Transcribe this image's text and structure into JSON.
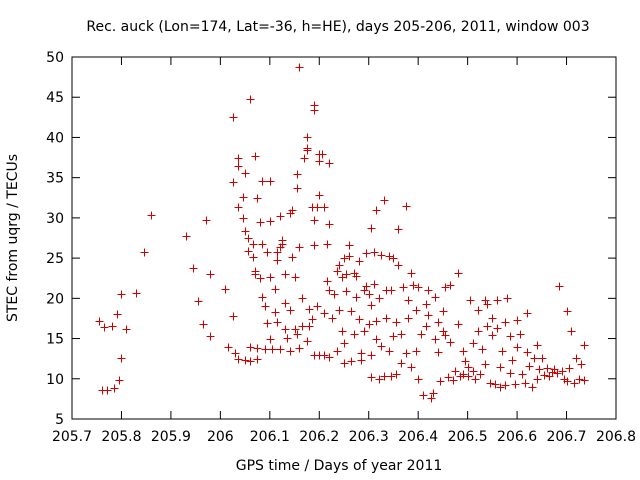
{
  "chart_data": {
    "type": "scatter",
    "title": "Rec. auck (Lon=174, Lat=-36, h=HE), days 205-206, 2011, window 003",
    "xlabel": "GPS time / Days of year 2011",
    "ylabel": "STEC from uqrg / TECUs",
    "xlim": [
      205.7,
      206.8
    ],
    "ylim": [
      5,
      50
    ],
    "xticks": [
      205.7,
      205.8,
      205.9,
      206.0,
      206.1,
      206.2,
      206.3,
      206.4,
      206.5,
      206.6,
      206.7,
      206.8
    ],
    "xtick_labels": [
      "205.7",
      "205.8",
      "205.9",
      "206",
      "206.1",
      "206.2",
      "206.3",
      "206.4",
      "206.5",
      "206.6",
      "206.7",
      "206.8"
    ],
    "yticks": [
      5,
      10,
      15,
      20,
      25,
      30,
      35,
      40,
      45,
      50
    ],
    "ytick_labels": [
      "5",
      "10",
      "15",
      "20",
      "25",
      "30",
      "35",
      "40",
      "45",
      "50"
    ],
    "marker": "+",
    "color": "#d40000",
    "series": [
      {
        "name": "STEC",
        "points": [
          [
            205.755,
            17.2
          ],
          [
            205.76,
            8.6
          ],
          [
            205.765,
            16.4
          ],
          [
            205.77,
            8.6
          ],
          [
            205.78,
            16.6
          ],
          [
            205.785,
            8.9
          ],
          [
            205.79,
            18.0
          ],
          [
            205.795,
            9.9
          ],
          [
            205.8,
            20.5
          ],
          [
            205.8,
            12.6
          ],
          [
            205.81,
            16.2
          ],
          [
            205.83,
            20.7
          ],
          [
            205.845,
            25.8
          ],
          [
            205.86,
            30.3
          ],
          [
            205.93,
            27.8
          ],
          [
            205.945,
            23.8
          ],
          [
            205.955,
            19.7
          ],
          [
            205.965,
            16.8
          ],
          [
            205.97,
            29.7
          ],
          [
            205.98,
            23.0
          ],
          [
            205.98,
            15.3
          ],
          [
            206.01,
            21.2
          ],
          [
            206.015,
            14.0
          ],
          [
            206.025,
            42.5
          ],
          [
            206.025,
            34.5
          ],
          [
            206.025,
            17.8
          ],
          [
            206.03,
            13.2
          ],
          [
            206.035,
            37.5
          ],
          [
            206.035,
            36.5
          ],
          [
            206.035,
            31.4
          ],
          [
            206.035,
            12.4
          ],
          [
            206.045,
            32.6
          ],
          [
            206.045,
            30.0
          ],
          [
            206.05,
            28.4
          ],
          [
            206.05,
            35.6
          ],
          [
            206.05,
            12.3
          ],
          [
            206.055,
            27.5
          ],
          [
            206.055,
            25.9
          ],
          [
            206.06,
            12.2
          ],
          [
            206.06,
            44.8
          ],
          [
            206.06,
            14.0
          ],
          [
            206.065,
            26.8
          ],
          [
            206.065,
            25.2
          ],
          [
            206.07,
            23.4
          ],
          [
            206.07,
            23.0
          ],
          [
            206.07,
            37.7
          ],
          [
            206.075,
            32.5
          ],
          [
            206.075,
            13.8
          ],
          [
            206.075,
            12.4
          ],
          [
            206.08,
            22.5
          ],
          [
            206.08,
            29.5
          ],
          [
            206.085,
            34.6
          ],
          [
            206.085,
            26.8
          ],
          [
            206.085,
            20.2
          ],
          [
            206.09,
            19.0
          ],
          [
            206.09,
            13.7
          ],
          [
            206.095,
            25.8
          ],
          [
            206.095,
            16.9
          ],
          [
            206.1,
            34.6
          ],
          [
            206.1,
            29.6
          ],
          [
            206.1,
            22.7
          ],
          [
            206.1,
            15.0
          ],
          [
            206.105,
            13.7
          ],
          [
            206.11,
            21.1
          ],
          [
            206.11,
            18.3
          ],
          [
            206.115,
            25.8
          ],
          [
            206.115,
            24.8
          ],
          [
            206.115,
            17.0
          ],
          [
            206.12,
            30.2
          ],
          [
            206.12,
            26.4
          ],
          [
            206.12,
            13.7
          ],
          [
            206.125,
            27.2
          ],
          [
            206.125,
            26.8
          ],
          [
            206.13,
            23.0
          ],
          [
            206.13,
            19.4
          ],
          [
            206.13,
            16.2
          ],
          [
            206.135,
            15.1
          ],
          [
            206.14,
            30.6
          ],
          [
            206.14,
            18.6
          ],
          [
            206.14,
            13.5
          ],
          [
            206.145,
            31.0
          ],
          [
            206.145,
            25.2
          ],
          [
            206.15,
            22.6
          ],
          [
            206.15,
            16.2
          ],
          [
            206.155,
            33.7
          ],
          [
            206.155,
            35.5
          ],
          [
            206.155,
            15.6
          ],
          [
            206.16,
            48.7
          ],
          [
            206.16,
            26.4
          ],
          [
            206.16,
            13.8
          ],
          [
            206.165,
            20.0
          ],
          [
            206.165,
            16.5
          ],
          [
            206.17,
            37.4
          ],
          [
            206.175,
            40.0
          ],
          [
            206.175,
            38.7
          ],
          [
            206.175,
            38.4
          ],
          [
            206.175,
            14.7
          ],
          [
            206.18,
            18.7
          ],
          [
            206.18,
            16.5
          ],
          [
            206.185,
            31.4
          ],
          [
            206.185,
            17.4
          ],
          [
            206.19,
            44.0
          ],
          [
            206.19,
            43.4
          ],
          [
            206.19,
            29.7
          ],
          [
            206.19,
            26.6
          ],
          [
            206.19,
            13.0
          ],
          [
            206.195,
            31.3
          ],
          [
            206.195,
            19.1
          ],
          [
            206.2,
            37.9
          ],
          [
            206.2,
            37.1
          ],
          [
            206.2,
            32.8
          ],
          [
            206.2,
            12.9
          ],
          [
            206.205,
            38.0
          ],
          [
            206.21,
            31.4
          ],
          [
            206.21,
            18.2
          ],
          [
            206.21,
            13.0
          ],
          [
            206.215,
            26.8
          ],
          [
            206.215,
            22.2
          ],
          [
            206.22,
            36.8
          ],
          [
            206.22,
            29.3
          ],
          [
            206.22,
            21.0
          ],
          [
            206.22,
            12.7
          ],
          [
            206.225,
            17.6
          ],
          [
            206.23,
            20.5
          ],
          [
            206.235,
            23.4
          ],
          [
            206.235,
            13.4
          ],
          [
            206.24,
            24.2
          ],
          [
            206.24,
            18.6
          ],
          [
            206.245,
            22.6
          ],
          [
            206.245,
            16.0
          ],
          [
            206.25,
            25.0
          ],
          [
            206.25,
            14.4
          ],
          [
            206.25,
            12.0
          ],
          [
            206.255,
            23.0
          ],
          [
            206.255,
            20.9
          ],
          [
            206.26,
            26.6
          ],
          [
            206.26,
            25.3
          ],
          [
            206.265,
            18.4
          ],
          [
            206.265,
            12.2
          ],
          [
            206.27,
            23.2
          ],
          [
            206.27,
            15.6
          ],
          [
            206.275,
            22.8
          ],
          [
            206.275,
            20.2
          ],
          [
            206.28,
            24.6
          ],
          [
            206.28,
            17.4
          ],
          [
            206.285,
            13.2
          ],
          [
            206.285,
            12.3
          ],
          [
            206.29,
            21.0
          ],
          [
            206.29,
            16.0
          ],
          [
            206.295,
            25.6
          ],
          [
            206.295,
            21.5
          ],
          [
            206.3,
            20.6
          ],
          [
            206.3,
            16.8
          ],
          [
            206.305,
            28.8
          ],
          [
            206.305,
            19.2
          ],
          [
            206.305,
            13.0
          ],
          [
            206.305,
            10.2
          ],
          [
            206.31,
            25.7
          ],
          [
            206.31,
            21.8
          ],
          [
            206.315,
            31.0
          ],
          [
            206.315,
            17.2
          ],
          [
            206.315,
            15.0
          ],
          [
            206.32,
            20.1
          ],
          [
            206.32,
            10.0
          ],
          [
            206.325,
            25.4
          ],
          [
            206.325,
            14.1
          ],
          [
            206.33,
            32.2
          ],
          [
            206.33,
            10.3
          ],
          [
            206.335,
            21.0
          ],
          [
            206.335,
            17.6
          ],
          [
            206.34,
            25.3
          ],
          [
            206.34,
            13.4
          ],
          [
            206.345,
            21.0
          ],
          [
            206.345,
            10.3
          ],
          [
            206.35,
            25.0
          ],
          [
            206.35,
            15.3
          ],
          [
            206.355,
            17.0
          ],
          [
            206.355,
            10.6
          ],
          [
            206.36,
            28.6
          ],
          [
            206.36,
            24.2
          ],
          [
            206.365,
            15.6
          ],
          [
            206.365,
            12.0
          ],
          [
            206.37,
            21.4
          ],
          [
            206.375,
            31.5
          ],
          [
            206.375,
            13.2
          ],
          [
            206.38,
            19.8
          ],
          [
            206.38,
            17.5
          ],
          [
            206.385,
            23.2
          ],
          [
            206.385,
            11.5
          ],
          [
            206.39,
            21.6
          ],
          [
            206.395,
            18.5
          ],
          [
            206.395,
            13.5
          ],
          [
            206.4,
            21.4
          ],
          [
            206.4,
            10.0
          ],
          [
            206.405,
            15.6
          ],
          [
            206.41,
            8.0
          ],
          [
            206.415,
            19.3
          ],
          [
            206.415,
            16.6
          ],
          [
            206.42,
            21.0
          ],
          [
            206.42,
            17.9
          ],
          [
            206.425,
            7.6
          ],
          [
            206.43,
            8.2
          ],
          [
            206.435,
            20.2
          ],
          [
            206.435,
            15.0
          ],
          [
            206.44,
            17.0
          ],
          [
            206.44,
            13.3
          ],
          [
            206.445,
            9.7
          ],
          [
            206.45,
            18.4
          ],
          [
            206.45,
            16.0
          ],
          [
            206.455,
            21.4
          ],
          [
            206.455,
            15.4
          ],
          [
            206.46,
            10.2
          ],
          [
            206.465,
            21.7
          ],
          [
            206.465,
            14.6
          ],
          [
            206.47,
            9.9
          ],
          [
            206.475,
            11.0
          ],
          [
            206.48,
            23.1
          ],
          [
            206.48,
            16.8
          ],
          [
            206.485,
            10.4
          ],
          [
            206.49,
            13.5
          ],
          [
            206.49,
            10.6
          ],
          [
            206.495,
            12.2
          ],
          [
            206.5,
            11.5
          ],
          [
            206.5,
            10.3
          ],
          [
            206.505,
            19.8
          ],
          [
            206.51,
            14.5
          ],
          [
            206.51,
            11.0
          ],
          [
            206.515,
            10.0
          ],
          [
            206.52,
            18.5
          ],
          [
            206.52,
            16.0
          ],
          [
            206.525,
            10.6
          ],
          [
            206.53,
            13.7
          ],
          [
            206.535,
            19.8
          ],
          [
            206.535,
            11.8
          ],
          [
            206.54,
            19.3
          ],
          [
            206.54,
            16.6
          ],
          [
            206.545,
            9.5
          ],
          [
            206.55,
            17.6
          ],
          [
            206.55,
            15.4
          ],
          [
            206.555,
            9.3
          ],
          [
            206.56,
            19.8
          ],
          [
            206.56,
            16.3
          ],
          [
            206.565,
            11.5
          ],
          [
            206.565,
            9.0
          ],
          [
            206.57,
            13.5
          ],
          [
            206.575,
            17.0
          ],
          [
            206.575,
            9.2
          ],
          [
            206.58,
            20.0
          ],
          [
            206.585,
            15.3
          ],
          [
            206.585,
            10.7
          ],
          [
            206.59,
            12.3
          ],
          [
            206.595,
            9.4
          ],
          [
            206.6,
            17.3
          ],
          [
            206.6,
            14.0
          ],
          [
            206.605,
            15.6
          ],
          [
            206.61,
            10.6
          ],
          [
            206.615,
            9.5
          ],
          [
            206.62,
            18.2
          ],
          [
            206.62,
            13.3
          ],
          [
            206.625,
            11.6
          ],
          [
            206.63,
            9.0
          ],
          [
            206.635,
            12.6
          ],
          [
            206.64,
            14.2
          ],
          [
            206.64,
            10.0
          ],
          [
            206.645,
            11.2
          ],
          [
            206.65,
            12.6
          ],
          [
            206.655,
            10.5
          ],
          [
            206.66,
            11.4
          ],
          [
            206.665,
            10.3
          ],
          [
            206.67,
            10.9
          ],
          [
            206.675,
            11.2
          ],
          [
            206.68,
            10.7
          ],
          [
            206.685,
            21.5
          ],
          [
            206.69,
            11.0
          ],
          [
            206.695,
            10.0
          ],
          [
            206.7,
            18.4
          ],
          [
            206.7,
            9.7
          ],
          [
            206.705,
            11.4
          ],
          [
            206.71,
            16.0
          ],
          [
            206.715,
            9.5
          ],
          [
            206.72,
            12.6
          ],
          [
            206.725,
            10.0
          ],
          [
            206.73,
            11.8
          ],
          [
            206.735,
            14.2
          ],
          [
            206.735,
            9.8
          ]
        ]
      }
    ]
  }
}
